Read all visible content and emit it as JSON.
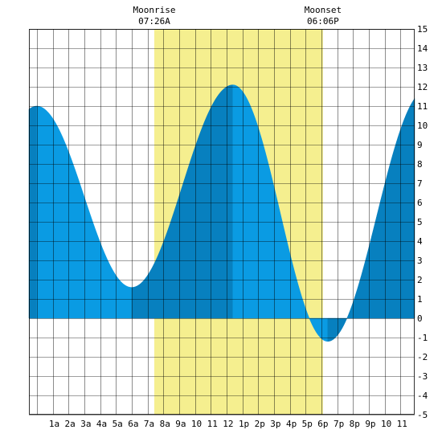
{
  "chart_data": {
    "type": "area",
    "title": "",
    "xlabel": "",
    "ylabel": "",
    "x_tick_labels": [
      "1a",
      "2a",
      "3a",
      "4a",
      "5a",
      "6a",
      "7a",
      "8a",
      "9a",
      "10",
      "11",
      "12",
      "1p",
      "2p",
      "3p",
      "4p",
      "5p",
      "6p",
      "7p",
      "8p",
      "9p",
      "10",
      "11"
    ],
    "x_range_hours": [
      -0.5,
      23.9
    ],
    "ylim": [
      -5,
      15
    ],
    "y_ticks": [
      -5,
      -4,
      -3,
      -2,
      -1,
      0,
      1,
      2,
      3,
      4,
      5,
      6,
      7,
      8,
      9,
      10,
      11,
      12,
      13,
      14,
      15
    ],
    "grid": true,
    "moonrise": {
      "label": "Moonrise",
      "time": "07:26A",
      "hour": 7.43
    },
    "moonset": {
      "label": "Moonset",
      "time": "06:06P",
      "hour": 18.1
    },
    "extremes": [
      {
        "type": "high",
        "hour": 0.0,
        "value": 11.0
      },
      {
        "type": "low",
        "hour": 6.0,
        "value": 1.6
      },
      {
        "type": "high",
        "hour": 12.4,
        "value": 12.1
      },
      {
        "type": "low",
        "hour": 18.4,
        "value": -1.2
      },
      {
        "type": "high",
        "hour": 24.6,
        "value": 11.8
      }
    ],
    "colors": {
      "daylight": "#f5ef8f",
      "tide_light": "#0a9be3",
      "tide_dark": "#0780bf",
      "grid": "#000000"
    }
  }
}
